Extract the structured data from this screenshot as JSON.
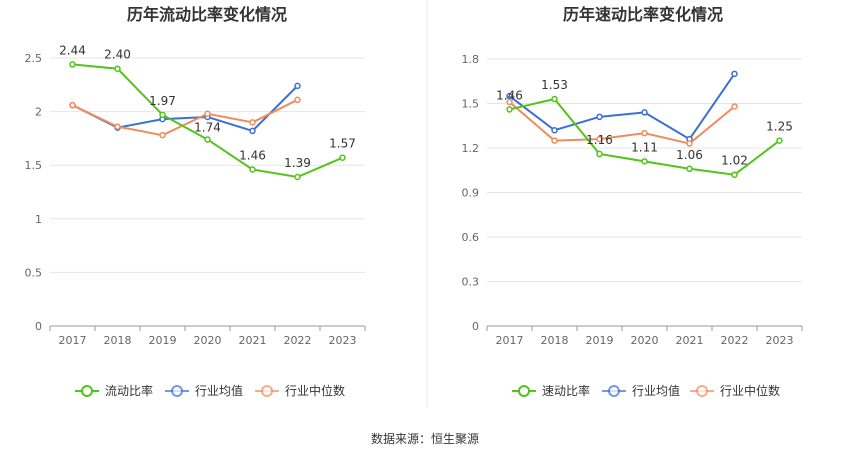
{
  "source_text": "数据来源：恒生聚源",
  "colors": {
    "green": "#52c41a",
    "blue": "#3b6fd8",
    "orange": "#f08c5c",
    "grid": "#e6e6e6",
    "axis": "#999999",
    "divider": "#e8e8e8"
  },
  "chart_data": [
    {
      "type": "line",
      "title": "历年流动比率变化情况",
      "categories": [
        "2017",
        "2018",
        "2019",
        "2020",
        "2021",
        "2022",
        "2023"
      ],
      "ylim": [
        0,
        2.5
      ],
      "yticks": [
        0,
        0.5,
        1,
        1.5,
        2,
        2.5
      ],
      "ytick_labels": [
        "0",
        "0.5",
        "1",
        "1.5",
        "2",
        "2.5"
      ],
      "grid": true,
      "legend_position": "bottom",
      "series": [
        {
          "name": "流动比率",
          "color_key": "green",
          "values": [
            2.44,
            2.4,
            1.97,
            1.74,
            1.46,
            1.39,
            1.57
          ],
          "labels": [
            "2.44",
            "2.40",
            "1.97",
            "1.74",
            "1.46",
            "1.39",
            "1.57"
          ]
        },
        {
          "name": "行业均值",
          "color_key": "blue",
          "values": [
            2.06,
            1.85,
            1.93,
            1.95,
            1.82,
            2.24,
            null
          ]
        },
        {
          "name": "行业中位数",
          "color_key": "orange",
          "values": [
            2.06,
            1.86,
            1.78,
            1.98,
            1.9,
            2.11,
            null
          ]
        }
      ]
    },
    {
      "type": "line",
      "title": "历年速动比率变化情况",
      "categories": [
        "2017",
        "2018",
        "2019",
        "2020",
        "2021",
        "2022",
        "2023"
      ],
      "ylim": [
        0,
        1.8
      ],
      "yticks": [
        0,
        0.3,
        0.6,
        0.9,
        1.2,
        1.5,
        1.8
      ],
      "ytick_labels": [
        "0",
        "0.3",
        "0.6",
        "0.9",
        "1.2",
        "1.5",
        "1.8"
      ],
      "grid": true,
      "legend_position": "bottom",
      "series": [
        {
          "name": "速动比率",
          "color_key": "green",
          "values": [
            1.46,
            1.53,
            1.16,
            1.11,
            1.06,
            1.02,
            1.25
          ],
          "labels": [
            "1.46",
            "1.53",
            "1.16",
            "1.11",
            "1.06",
            "1.02",
            "1.25"
          ]
        },
        {
          "name": "行业均值",
          "color_key": "blue",
          "values": [
            1.55,
            1.32,
            1.41,
            1.44,
            1.26,
            1.7,
            null
          ]
        },
        {
          "name": "行业中位数",
          "color_key": "orange",
          "values": [
            1.51,
            1.25,
            1.26,
            1.3,
            1.23,
            1.48,
            null
          ]
        }
      ]
    }
  ]
}
